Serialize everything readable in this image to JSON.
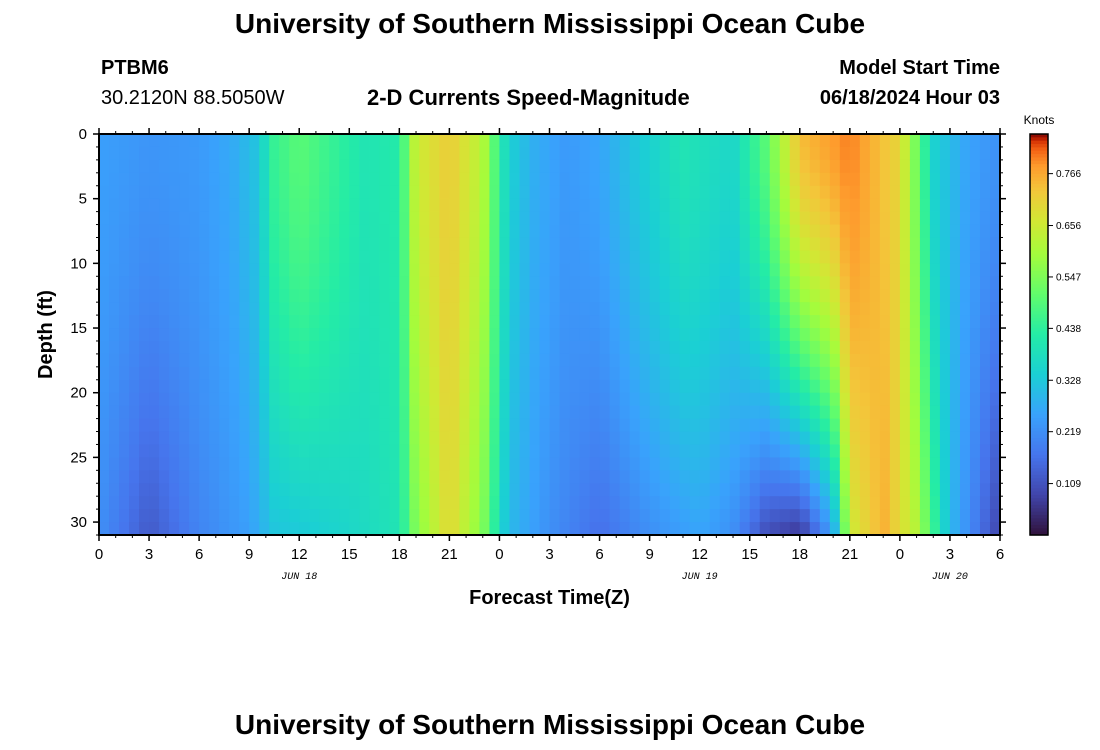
{
  "header": {
    "title": "University of Southern Mississippi Ocean Cube",
    "footer_title": "University of Southern Mississippi Ocean Cube",
    "station_id": "PTBM6",
    "coords": "30.2120N  88.5050W",
    "subtitle": "2-D Currents Speed-Magnitude",
    "start_label": "Model Start Time",
    "start_value": "06/18/2024 Hour 03"
  },
  "chart_data": {
    "type": "heatmap",
    "title": "2-D Currents Speed-Magnitude",
    "xlabel": "Forecast Time(Z)",
    "ylabel": "Depth (ft)",
    "x_hours_range": [
      0,
      54
    ],
    "y_depth_range": [
      0,
      31
    ],
    "x_tick_labels": [
      "0",
      "3",
      "6",
      "9",
      "12",
      "15",
      "18",
      "21",
      "0",
      "3",
      "6",
      "9",
      "12",
      "15",
      "18",
      "21",
      "0",
      "3",
      "6"
    ],
    "y_tick_labels": [
      "0",
      "5",
      "10",
      "15",
      "20",
      "25",
      "30"
    ],
    "y_tick_values": [
      0,
      5,
      10,
      15,
      20,
      25,
      30
    ],
    "date_labels": [
      {
        "label": "JUN 18",
        "hour": 12
      },
      {
        "label": "JUN 19",
        "hour": 36
      },
      {
        "label": "JUN 20",
        "hour": 51
      }
    ],
    "colorbar": {
      "title": "Knots",
      "tick_labels": [
        "0.766",
        "0.656",
        "0.547",
        "0.438",
        "0.328",
        "0.219",
        "0.109"
      ],
      "tick_values": [
        0.766,
        0.656,
        0.547,
        0.438,
        0.328,
        0.219,
        0.109
      ],
      "range": [
        0.0,
        0.85
      ]
    },
    "surface_speed_profile": [
      {
        "hour": 0,
        "speed": 0.25
      },
      {
        "hour": 3,
        "speed": 0.23
      },
      {
        "hour": 6,
        "speed": 0.24
      },
      {
        "hour": 8,
        "speed": 0.27
      },
      {
        "hour": 9.5,
        "speed": 0.32
      },
      {
        "hour": 10.5,
        "speed": 0.45
      },
      {
        "hour": 12,
        "speed": 0.5
      },
      {
        "hour": 14,
        "speed": 0.45
      },
      {
        "hour": 16,
        "speed": 0.4
      },
      {
        "hour": 18,
        "speed": 0.42
      },
      {
        "hour": 19,
        "speed": 0.65
      },
      {
        "hour": 21,
        "speed": 0.72
      },
      {
        "hour": 23,
        "speed": 0.62
      },
      {
        "hour": 24.5,
        "speed": 0.35
      },
      {
        "hour": 26,
        "speed": 0.28
      },
      {
        "hour": 28,
        "speed": 0.24
      },
      {
        "hour": 30,
        "speed": 0.26
      },
      {
        "hour": 32,
        "speed": 0.32
      },
      {
        "hour": 35,
        "speed": 0.4
      },
      {
        "hour": 38,
        "speed": 0.36
      },
      {
        "hour": 40,
        "speed": 0.5
      },
      {
        "hour": 42,
        "speed": 0.74
      },
      {
        "hour": 45,
        "speed": 0.8
      },
      {
        "hour": 48,
        "speed": 0.7
      },
      {
        "hour": 50,
        "speed": 0.35
      },
      {
        "hour": 52,
        "speed": 0.26
      },
      {
        "hour": 54,
        "speed": 0.22
      }
    ],
    "bottom_speed_profile": [
      {
        "hour": 0,
        "speed": 0.22
      },
      {
        "hour": 3,
        "speed": 0.12
      },
      {
        "hour": 6,
        "speed": 0.2
      },
      {
        "hour": 9,
        "speed": 0.25
      },
      {
        "hour": 10.5,
        "speed": 0.32
      },
      {
        "hour": 12,
        "speed": 0.33
      },
      {
        "hour": 15,
        "speed": 0.36
      },
      {
        "hour": 18,
        "speed": 0.4
      },
      {
        "hour": 19,
        "speed": 0.55
      },
      {
        "hour": 21,
        "speed": 0.7
      },
      {
        "hour": 23,
        "speed": 0.55
      },
      {
        "hour": 24.5,
        "speed": 0.3
      },
      {
        "hour": 27,
        "speed": 0.22
      },
      {
        "hour": 30,
        "speed": 0.16
      },
      {
        "hour": 33,
        "speed": 0.22
      },
      {
        "hour": 36,
        "speed": 0.26
      },
      {
        "hour": 38,
        "speed": 0.22
      },
      {
        "hour": 40,
        "speed": 0.1
      },
      {
        "hour": 42,
        "speed": 0.06
      },
      {
        "hour": 44,
        "speed": 0.25
      },
      {
        "hour": 45,
        "speed": 0.65
      },
      {
        "hour": 47,
        "speed": 0.76
      },
      {
        "hour": 49,
        "speed": 0.62
      },
      {
        "hour": 51,
        "speed": 0.3
      },
      {
        "hour": 53,
        "speed": 0.15
      },
      {
        "hour": 54,
        "speed": 0.08
      }
    ]
  }
}
